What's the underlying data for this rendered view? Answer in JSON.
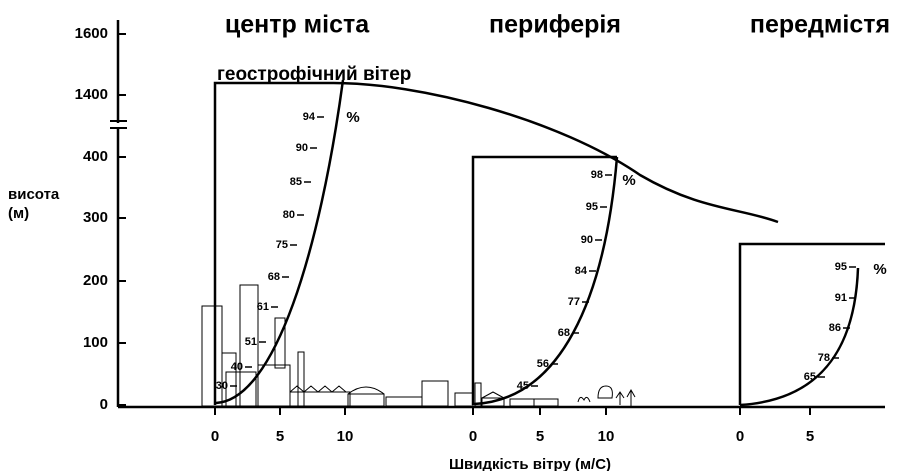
{
  "zone_titles": [
    "центр міста",
    "периферія",
    "передмістя"
  ],
  "geostrophic_label": "геострофічний вітер",
  "y_axis": {
    "label_lines": [
      "висота",
      "(м)"
    ],
    "ticks": [
      "1600",
      "1400",
      "400",
      "300",
      "200",
      "100",
      "0"
    ]
  },
  "x_axis": {
    "label": "Швидкість вітру (м/С)",
    "groups": [
      [
        "0",
        "5",
        "10"
      ],
      [
        "0",
        "5",
        "10"
      ],
      [
        "0",
        "5"
      ]
    ]
  },
  "profiles": [
    {
      "marks": [
        "94",
        "90",
        "85",
        "80",
        "75",
        "68",
        "61",
        "51",
        "40",
        "30"
      ],
      "unit": "%"
    },
    {
      "marks": [
        "98",
        "95",
        "90",
        "84",
        "77",
        "68",
        "56",
        "45"
      ],
      "unit": "%"
    },
    {
      "marks": [
        "95",
        "91",
        "86",
        "78",
        "65"
      ],
      "unit": "%"
    }
  ]
}
